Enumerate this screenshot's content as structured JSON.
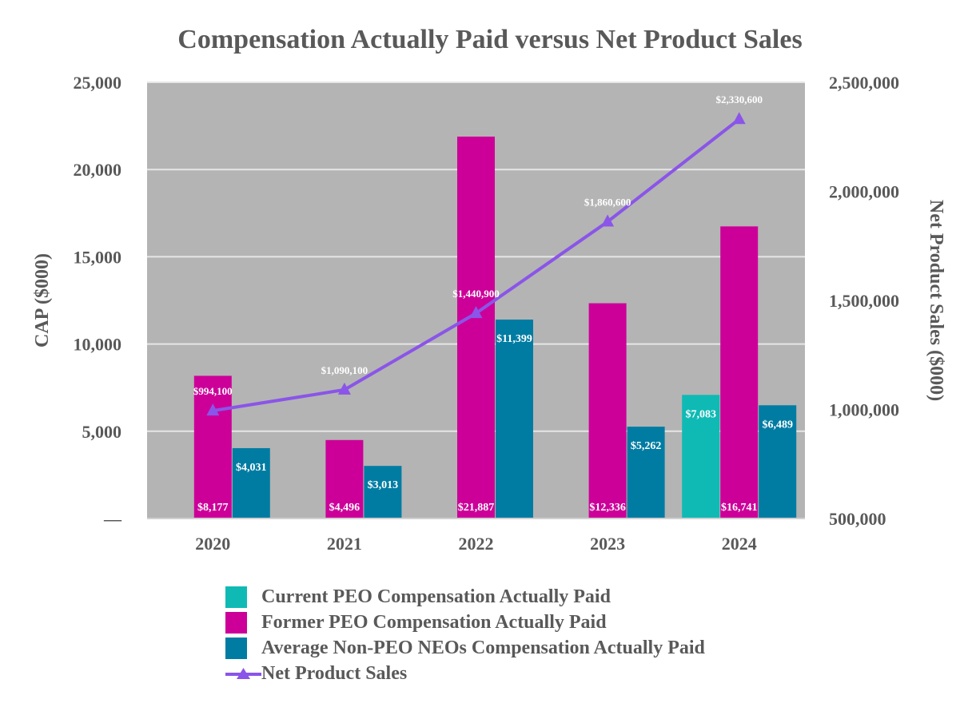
{
  "chart_data": {
    "type": "bar",
    "title": "Compensation Actually Paid versus Net Product Sales",
    "categories": [
      "2020",
      "2021",
      "2022",
      "2023",
      "2024"
    ],
    "ylabel": "CAP ($000)",
    "y2label": "Net Product Sales ($000)",
    "ylim": [
      0,
      25000
    ],
    "y2lim": [
      500000,
      2500000
    ],
    "yticks": [
      "—",
      "5,000",
      "10,000",
      "15,000",
      "20,000",
      "25,000"
    ],
    "y2ticks": [
      "500,000",
      "1,000,000",
      "1,500,000",
      "2,000,000",
      "2,500,000"
    ],
    "grid": true,
    "series": [
      {
        "name": "Current PEO Compensation Actually Paid",
        "color": "#0fbab5",
        "values": [
          null,
          null,
          null,
          null,
          7083
        ],
        "labels": [
          "",
          "",
          "",
          "",
          "$7,083"
        ]
      },
      {
        "name": "Former PEO Compensation Actually Paid",
        "color": "#cc0099",
        "values": [
          8177,
          4496,
          21887,
          12336,
          16741
        ],
        "labels": [
          "$8,177",
          "$4,496",
          "$21,887",
          "$12,336",
          "$16,741"
        ]
      },
      {
        "name": "Average Non-PEO NEOs Compensation Actually Paid",
        "color": "#007ca3",
        "values": [
          4031,
          3013,
          11399,
          5262,
          6489
        ],
        "labels": [
          "$4,031",
          "$3,013",
          "$11,399",
          "$5,262",
          "$6,489"
        ]
      }
    ],
    "line_series": {
      "name": "Net Product Sales",
      "color": "#8a55e8",
      "axis": "right",
      "values": [
        994100,
        1090100,
        1440900,
        1860600,
        2330600
      ],
      "labels": [
        "$994,100",
        "$1,090,100",
        "$1,440,900",
        "$1,860,600",
        "$2,330,600"
      ]
    },
    "legend_position": "bottom"
  }
}
